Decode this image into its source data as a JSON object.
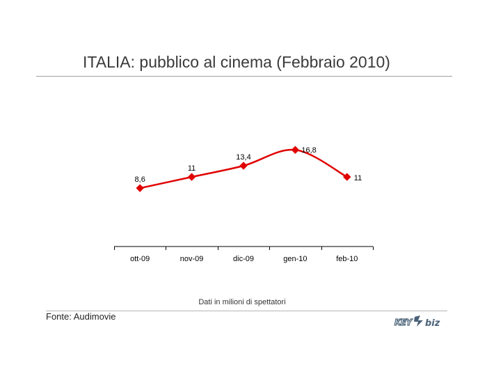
{
  "title": "ITALIA: pubblico al cinema (Febbraio 2010)",
  "note": "Dati in milioni di spettatori",
  "source": "Fonte: Audimovie",
  "logo_text": "KEY4biz",
  "colors": {
    "line": "#e00000",
    "axis": "#000000",
    "rule": "#a0a0a0"
  },
  "chart_data": {
    "type": "line",
    "title": "ITALIA: pubblico al cinema (Febbraio 2010)",
    "xlabel": "",
    "ylabel": "",
    "categories": [
      "ott-09",
      "nov-09",
      "dic-09",
      "gen-10",
      "feb-10"
    ],
    "series": [
      {
        "values": [
          8.6,
          11,
          13.4,
          16.8,
          11
        ]
      }
    ],
    "data_labels": [
      "8,6",
      "11",
      "13,4",
      "16,8",
      "11"
    ],
    "smooth": true,
    "grid": false,
    "legend": "none"
  }
}
